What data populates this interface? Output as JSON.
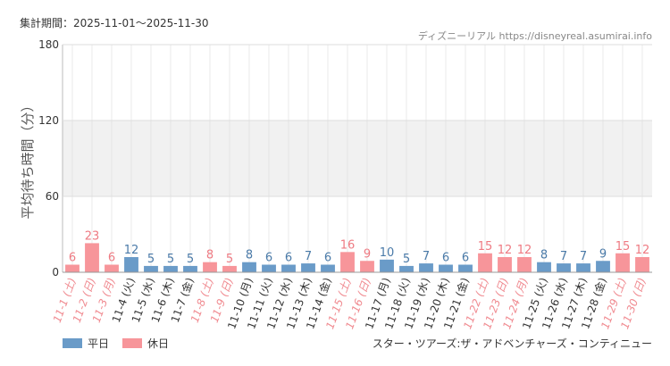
{
  "header": {
    "period_label": "集計期間：2025-11-01〜2025-11-30",
    "site_credit": "ディズニーリアル https://disneyreal.asumirai.info"
  },
  "footer": {
    "attraction_name": "スター・ツアーズ:ザ・アドベンチャーズ・コンティニュー"
  },
  "colors": {
    "weekday": "#6a9bc8",
    "holiday": "#f7959a",
    "weekday_label": "#4a7aa8",
    "holiday_label": "#ee7a82",
    "x_weekday_text": "#333333",
    "x_holiday_text": "#f08a90",
    "band": "#f1f1f1",
    "grid": "#dddddd"
  },
  "chart_data": {
    "type": "bar",
    "ylabel": "平均待ち時間（分）",
    "ylim": [
      0,
      180
    ],
    "yticks": [
      0,
      60,
      120,
      180
    ],
    "shaded_band": [
      60,
      120
    ],
    "grid": true,
    "legend_position": "bottom-left",
    "categories": [
      "11-1 (土)",
      "11-2 (日)",
      "11-3 (月)",
      "11-4 (火)",
      "11-5 (水)",
      "11-6 (木)",
      "11-7 (金)",
      "11-8 (土)",
      "11-9 (日)",
      "11-10 (月)",
      "11-11 (火)",
      "11-12 (水)",
      "11-13 (木)",
      "11-14 (金)",
      "11-15 (土)",
      "11-16 (日)",
      "11-17 (月)",
      "11-18 (火)",
      "11-19 (水)",
      "11-20 (木)",
      "11-21 (金)",
      "11-22 (土)",
      "11-23 (日)",
      "11-24 (月)",
      "11-25 (火)",
      "11-26 (水)",
      "11-27 (木)",
      "11-28 (金)",
      "11-29 (土)",
      "11-30 (日)"
    ],
    "values": [
      6,
      23,
      6,
      12,
      5,
      5,
      5,
      8,
      5,
      8,
      6,
      6,
      7,
      6,
      16,
      9,
      10,
      5,
      7,
      6,
      6,
      15,
      12,
      12,
      8,
      7,
      7,
      9,
      15,
      12
    ],
    "day_type": [
      "holiday",
      "holiday",
      "holiday",
      "weekday",
      "weekday",
      "weekday",
      "weekday",
      "holiday",
      "holiday",
      "weekday",
      "weekday",
      "weekday",
      "weekday",
      "weekday",
      "holiday",
      "holiday",
      "weekday",
      "weekday",
      "weekday",
      "weekday",
      "weekday",
      "holiday",
      "holiday",
      "holiday",
      "weekday",
      "weekday",
      "weekday",
      "weekday",
      "holiday",
      "holiday"
    ],
    "series": [
      {
        "name": "平日",
        "key": "weekday"
      },
      {
        "name": "休日",
        "key": "holiday"
      }
    ]
  }
}
